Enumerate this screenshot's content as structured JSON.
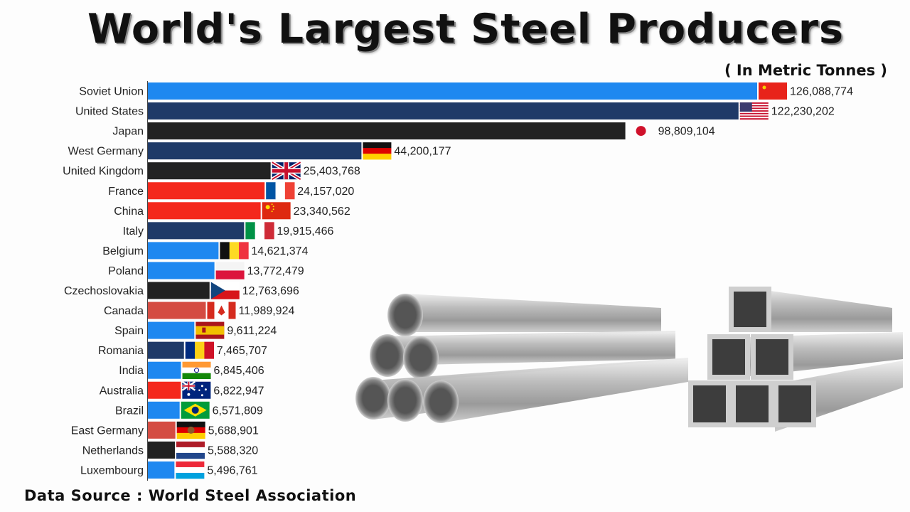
{
  "title": "World's Largest Steel Producers",
  "subtitle": "( In Metric Tonnes )",
  "source": "Data Source : World Steel Association",
  "colors": {
    "accent_blue": "#1e88f0",
    "navy": "#1f3a68",
    "black": "#222222",
    "red": "#f4281c",
    "brick": "#d44c42"
  },
  "chart_data": {
    "type": "bar",
    "orientation": "horizontal",
    "title": "World's Largest Steel Producers",
    "subtitle": "( In Metric Tonnes )",
    "categories": [
      "Soviet Union",
      "United States",
      "Japan",
      "West Germany",
      "United Kingdom",
      "France",
      "China",
      "Italy",
      "Belgium",
      "Poland",
      "Czechoslovakia",
      "Canada",
      "Spain",
      "Romania",
      "India",
      "Australia",
      "Brazil",
      "East Germany",
      "Netherlands",
      "Luxembourg"
    ],
    "values": [
      126088774,
      122230202,
      98809104,
      44200177,
      25403768,
      24157020,
      23340562,
      19915466,
      14621374,
      13772479,
      12763696,
      11989924,
      9611224,
      7465707,
      6845406,
      6822947,
      6571809,
      5688901,
      5588320,
      5496761
    ],
    "value_labels": [
      "126,088,774",
      "122,230,202",
      "98,809,104",
      "44,200,177",
      "25,403,768",
      "24,157,020",
      "23,340,562",
      "19,915,466",
      "14,621,374",
      "13,772,479",
      "12,763,696",
      "11,989,924",
      "9,611,224",
      "7,465,707",
      "6,845,406",
      "6,822,947",
      "6,571,809",
      "5,688,901",
      "5,588,320",
      "5,496,761"
    ],
    "bar_colors": [
      "#1e88f0",
      "#1f3a68",
      "#222222",
      "#1f3a68",
      "#222222",
      "#f4281c",
      "#f4281c",
      "#1f3a68",
      "#1e88f0",
      "#1e88f0",
      "#222222",
      "#d44c42",
      "#1e88f0",
      "#1f3a68",
      "#1e88f0",
      "#f4281c",
      "#1e88f0",
      "#d44c42",
      "#222222",
      "#1e88f0"
    ],
    "flag_icons": [
      "flag-soviet-union-icon",
      "flag-united-states-icon",
      "flag-japan-icon",
      "flag-west-germany-icon",
      "flag-united-kingdom-icon",
      "flag-france-icon",
      "flag-china-icon",
      "flag-italy-icon",
      "flag-belgium-icon",
      "flag-poland-icon",
      "flag-czechoslovakia-icon",
      "flag-canada-icon",
      "flag-spain-icon",
      "flag-romania-icon",
      "flag-india-icon",
      "flag-australia-icon",
      "flag-brazil-icon",
      "flag-east-germany-icon",
      "flag-netherlands-icon",
      "flag-luxembourg-icon"
    ],
    "xlim": [
      0,
      126088774
    ],
    "grid": false,
    "legend": "none"
  }
}
